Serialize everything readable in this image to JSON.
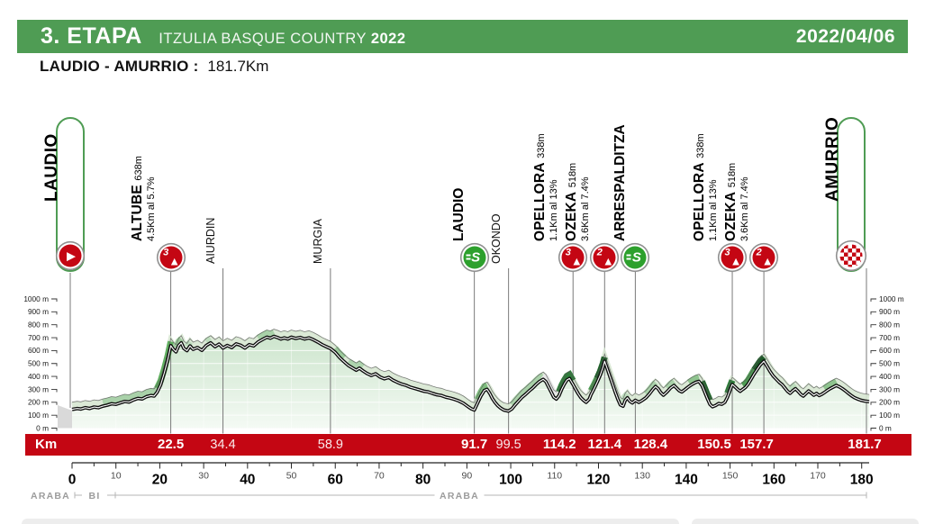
{
  "header": {
    "stage": "3. ETAPA",
    "race": "ITZULIA BASQUE COUNTRY",
    "year": "2022",
    "date": "2022/04/06"
  },
  "route": {
    "title": "LAUDIO - AMURRIO :",
    "distance": "181.7Km"
  },
  "km_bar_label": "Km",
  "colors": {
    "header_green": "#4f9c54",
    "bar_red": "#c40613",
    "sprint_green": "#2da02d",
    "climb_red": "#c40613",
    "box_border_green": "#4f9c54",
    "area_fill_top": "#cde5cd",
    "area_fill_bottom": "#f4faf4"
  },
  "chart_data": {
    "type": "area",
    "title": "3. Etapa Laudio - Amurrio elevation profile",
    "xlabel": "Km",
    "ylabel": "m",
    "xlim": [
      0,
      181.7
    ],
    "ylim": [
      0,
      1000
    ],
    "grid": true,
    "y_tick_labels": [
      "0 m",
      "100 m",
      "200 m",
      "300 m",
      "400 m",
      "500 m",
      "600 m",
      "700 m",
      "800 m",
      "900 m",
      "1000 m"
    ],
    "x_ticks_major": [
      0,
      20,
      40,
      60,
      80,
      100,
      120,
      140,
      160,
      180
    ],
    "x_ticks_minor": [
      10,
      30,
      50,
      70,
      90,
      110,
      130,
      150,
      170
    ],
    "waypoints": [
      {
        "name": "LAUDIO",
        "km": 0,
        "type": "start",
        "show_km": false
      },
      {
        "name": "ALTUBE",
        "km": 22.5,
        "type": "climb",
        "category": "3",
        "elev": "638m",
        "detail": "4.5Km al 5.7%",
        "km_label": "22.5"
      },
      {
        "name": "AIURDIN",
        "km": 34.4,
        "type": "town",
        "km_label": "34.4"
      },
      {
        "name": "MURGIA",
        "km": 58.9,
        "type": "town",
        "km_label": "58.9"
      },
      {
        "name": "LAUDIO",
        "km": 91.7,
        "type": "sprint",
        "km_label": "91.7"
      },
      {
        "name": "OKONDO",
        "km": 99.5,
        "type": "town",
        "km_label": "99.5"
      },
      {
        "name": "OPELLORA",
        "km": 114.2,
        "type": "climb",
        "category": "3",
        "elev": "338m",
        "detail": "1.1Km al 13%",
        "km_label": "114.2"
      },
      {
        "name": "OZEKA",
        "km": 121.4,
        "type": "climb",
        "category": "2",
        "elev": "518m",
        "detail": "3.6Km al 7.4%",
        "km_label": "121.4"
      },
      {
        "name": "ARRESPALDITZA",
        "km": 128.4,
        "type": "sprint",
        "km_label": "128.4"
      },
      {
        "name": "OPELLORA",
        "km": 150.5,
        "type": "climb",
        "category": "3",
        "elev": "338m",
        "detail": "1.1Km al 13%",
        "km_label": "150.5"
      },
      {
        "name": "OZEKA",
        "km": 157.7,
        "type": "climb",
        "category": "2",
        "elev": "518m",
        "detail": "3.6Km al 7.4%",
        "km_label": "157.7"
      },
      {
        "name": "AMURRIO",
        "km": 181.7,
        "type": "finish",
        "km_label": "181.7"
      }
    ],
    "regions": [
      {
        "label": "ARABA",
        "from_km": 0,
        "to_km": 0.6
      },
      {
        "label": "BI",
        "from_km": 0.6,
        "to_km": 9.9
      },
      {
        "label": "ARABA",
        "from_km": 9.9,
        "to_km": 181.7
      }
    ],
    "profile": [
      [
        0,
        145
      ],
      [
        1.2,
        152
      ],
      [
        2,
        148
      ],
      [
        3,
        158
      ],
      [
        4,
        152
      ],
      [
        5,
        163
      ],
      [
        6,
        158
      ],
      [
        7,
        170
      ],
      [
        8,
        178
      ],
      [
        9,
        188
      ],
      [
        10,
        184
      ],
      [
        11,
        196
      ],
      [
        12,
        206
      ],
      [
        13,
        202
      ],
      [
        14,
        218
      ],
      [
        15,
        230
      ],
      [
        16,
        226
      ],
      [
        17,
        244
      ],
      [
        18,
        252
      ],
      [
        18.7,
        248
      ],
      [
        19.4,
        278
      ],
      [
        20.2,
        335
      ],
      [
        21,
        425
      ],
      [
        21.8,
        528
      ],
      [
        22.5,
        638
      ],
      [
        23.1,
        610
      ],
      [
        23.7,
        590
      ],
      [
        24.3,
        640
      ],
      [
        24.9,
        660
      ],
      [
        25.5,
        616
      ],
      [
        26.2,
        600
      ],
      [
        26.9,
        636
      ],
      [
        27.6,
        610
      ],
      [
        28.6,
        624
      ],
      [
        29.6,
        602
      ],
      [
        30.6,
        640
      ],
      [
        31.6,
        660
      ],
      [
        32.6,
        630
      ],
      [
        33.5,
        650
      ],
      [
        34.4,
        620
      ],
      [
        35.4,
        640
      ],
      [
        36.4,
        624
      ],
      [
        37.4,
        652
      ],
      [
        38.4,
        642
      ],
      [
        39.4,
        620
      ],
      [
        40.4,
        646
      ],
      [
        41.4,
        636
      ],
      [
        42.4,
        666
      ],
      [
        43.4,
        686
      ],
      [
        44.4,
        704
      ],
      [
        45.2,
        696
      ],
      [
        46,
        710
      ],
      [
        46.8,
        702
      ],
      [
        47.6,
        690
      ],
      [
        48.4,
        698
      ],
      [
        49.2,
        690
      ],
      [
        50,
        704
      ],
      [
        51,
        694
      ],
      [
        52,
        702
      ],
      [
        53,
        690
      ],
      [
        54,
        698
      ],
      [
        55,
        684
      ],
      [
        56,
        666
      ],
      [
        57,
        646
      ],
      [
        58,
        630
      ],
      [
        58.9,
        616
      ],
      [
        60,
        586
      ],
      [
        61,
        546
      ],
      [
        62,
        514
      ],
      [
        63,
        484
      ],
      [
        64,
        464
      ],
      [
        64.8,
        448
      ],
      [
        65.5,
        464
      ],
      [
        66.3,
        444
      ],
      [
        67.2,
        424
      ],
      [
        68.2,
        408
      ],
      [
        69.2,
        420
      ],
      [
        70.2,
        396
      ],
      [
        71.2,
        382
      ],
      [
        72.2,
        392
      ],
      [
        73.2,
        370
      ],
      [
        74.2,
        354
      ],
      [
        75.2,
        340
      ],
      [
        76.2,
        330
      ],
      [
        77.2,
        316
      ],
      [
        78.2,
        306
      ],
      [
        79.2,
        296
      ],
      [
        80.2,
        286
      ],
      [
        81.2,
        280
      ],
      [
        82.2,
        268
      ],
      [
        83.2,
        258
      ],
      [
        84.2,
        252
      ],
      [
        85.2,
        240
      ],
      [
        86.2,
        232
      ],
      [
        87.2,
        222
      ],
      [
        88.2,
        210
      ],
      [
        89.2,
        192
      ],
      [
        90.2,
        168
      ],
      [
        91,
        150
      ],
      [
        91.7,
        140
      ],
      [
        92.4,
        190
      ],
      [
        93.2,
        248
      ],
      [
        94,
        292
      ],
      [
        94.6,
        300
      ],
      [
        95.2,
        270
      ],
      [
        95.8,
        230
      ],
      [
        96.4,
        200
      ],
      [
        97,
        175
      ],
      [
        97.7,
        155
      ],
      [
        98.4,
        140
      ],
      [
        99.5,
        132
      ],
      [
        100.3,
        150
      ],
      [
        101,
        180
      ],
      [
        101.8,
        210
      ],
      [
        102.6,
        240
      ],
      [
        103.4,
        262
      ],
      [
        104.2,
        288
      ],
      [
        105,
        310
      ],
      [
        105.8,
        338
      ],
      [
        106.6,
        362
      ],
      [
        107.4,
        378
      ],
      [
        108,
        360
      ],
      [
        108.6,
        320
      ],
      [
        109.2,
        280
      ],
      [
        109.8,
        240
      ],
      [
        110.4,
        225
      ],
      [
        111,
        250
      ],
      [
        111.6,
        300
      ],
      [
        112.2,
        340
      ],
      [
        112.8,
        372
      ],
      [
        113.4,
        384
      ],
      [
        114.2,
        338
      ],
      [
        114.8,
        300
      ],
      [
        115.4,
        265
      ],
      [
        116,
        235
      ],
      [
        116.6,
        215
      ],
      [
        117.2,
        200
      ],
      [
        117.9,
        225
      ],
      [
        118.3,
        260
      ],
      [
        119,
        305
      ],
      [
        119.7,
        355
      ],
      [
        120.4,
        410
      ],
      [
        121,
        470
      ],
      [
        121.4,
        518
      ],
      [
        122,
        460
      ],
      [
        122.6,
        400
      ],
      [
        123.2,
        340
      ],
      [
        123.8,
        280
      ],
      [
        124.4,
        225
      ],
      [
        125,
        180
      ],
      [
        125.6,
        170
      ],
      [
        126.1,
        215
      ],
      [
        126.6,
        235
      ],
      [
        127.1,
        210
      ],
      [
        127.7,
        195
      ],
      [
        128.4,
        215
      ],
      [
        129.2,
        200
      ],
      [
        130,
        215
      ],
      [
        130.8,
        235
      ],
      [
        131.6,
        265
      ],
      [
        132.4,
        300
      ],
      [
        133,
        322
      ],
      [
        133.6,
        305
      ],
      [
        134.2,
        275
      ],
      [
        134.8,
        255
      ],
      [
        135.6,
        280
      ],
      [
        136.4,
        310
      ],
      [
        137.2,
        330
      ],
      [
        137.8,
        310
      ],
      [
        138.4,
        290
      ],
      [
        139,
        280
      ],
      [
        139.8,
        300
      ],
      [
        140.6,
        322
      ],
      [
        141.4,
        340
      ],
      [
        142.2,
        355
      ],
      [
        142.9,
        362
      ],
      [
        143.6,
        330
      ],
      [
        144.2,
        280
      ],
      [
        144.8,
        230
      ],
      [
        145.4,
        185
      ],
      [
        146,
        165
      ],
      [
        146.7,
        175
      ],
      [
        147.4,
        190
      ],
      [
        148.1,
        185
      ],
      [
        148.8,
        200
      ],
      [
        149.4,
        240
      ],
      [
        150,
        295
      ],
      [
        150.5,
        338
      ],
      [
        151.1,
        320
      ],
      [
        151.7,
        300
      ],
      [
        152.3,
        285
      ],
      [
        152.9,
        300
      ],
      [
        153.5,
        315
      ],
      [
        154.1,
        340
      ],
      [
        154.8,
        380
      ],
      [
        155.5,
        420
      ],
      [
        156.2,
        455
      ],
      [
        156.9,
        490
      ],
      [
        157.7,
        518
      ],
      [
        158.4,
        480
      ],
      [
        159.1,
        440
      ],
      [
        159.8,
        405
      ],
      [
        160.5,
        380
      ],
      [
        161.2,
        355
      ],
      [
        161.9,
        335
      ],
      [
        162.5,
        310
      ],
      [
        163.1,
        285
      ],
      [
        163.7,
        270
      ],
      [
        164.3,
        290
      ],
      [
        164.9,
        305
      ],
      [
        165.5,
        285
      ],
      [
        166.1,
        262
      ],
      [
        166.7,
        248
      ],
      [
        167.3,
        268
      ],
      [
        167.9,
        288
      ],
      [
        168.5,
        272
      ],
      [
        169.1,
        255
      ],
      [
        169.7,
        268
      ],
      [
        170.3,
        252
      ],
      [
        170.9,
        262
      ],
      [
        171.5,
        275
      ],
      [
        172.1,
        290
      ],
      [
        172.8,
        305
      ],
      [
        173.5,
        318
      ],
      [
        174.2,
        330
      ],
      [
        174.9,
        320
      ],
      [
        175.6,
        305
      ],
      [
        176.3,
        288
      ],
      [
        177,
        268
      ],
      [
        177.7,
        250
      ],
      [
        178.4,
        235
      ],
      [
        179.1,
        225
      ],
      [
        179.8,
        216
      ],
      [
        180.6,
        210
      ],
      [
        181.7,
        205
      ]
    ],
    "ribbon_segments": [
      [
        7,
        19.4,
        "#a9d1a9"
      ],
      [
        19.4,
        22.5,
        "#5fae5f"
      ],
      [
        23.7,
        24.9,
        "#9ccb9c"
      ],
      [
        26.2,
        26.9,
        "#bcdcbc"
      ],
      [
        30.6,
        31.6,
        "#bcdcbc"
      ],
      [
        42.4,
        46,
        "#a9d1a9"
      ],
      [
        60,
        62,
        "#9ccb9c"
      ],
      [
        63,
        66.3,
        "#aed4ae"
      ],
      [
        92.4,
        94.6,
        "#7fbe7f"
      ],
      [
        100.3,
        107.4,
        "#a9d1a9"
      ],
      [
        107.4,
        110.4,
        "#e8e8e8"
      ],
      [
        111,
        114.2,
        "#2e7d3a"
      ],
      [
        118.3,
        119.7,
        "#4e9b53"
      ],
      [
        119.7,
        121.4,
        "#1f5f2a"
      ],
      [
        125.6,
        126.6,
        "#bcdcbc"
      ],
      [
        130.8,
        133,
        "#a9d1a9"
      ],
      [
        135.6,
        137.2,
        "#a9d1a9"
      ],
      [
        140.6,
        142.9,
        "#8fc48f"
      ],
      [
        143.6,
        145.4,
        "#24662e"
      ],
      [
        149.4,
        150.5,
        "#2e7d3a"
      ],
      [
        152.9,
        155.5,
        "#4e9b53"
      ],
      [
        155.5,
        157.7,
        "#1d5a28"
      ],
      [
        163.7,
        164.9,
        "#bcdcbc"
      ],
      [
        171.5,
        174.2,
        "#8fc48f"
      ]
    ]
  }
}
